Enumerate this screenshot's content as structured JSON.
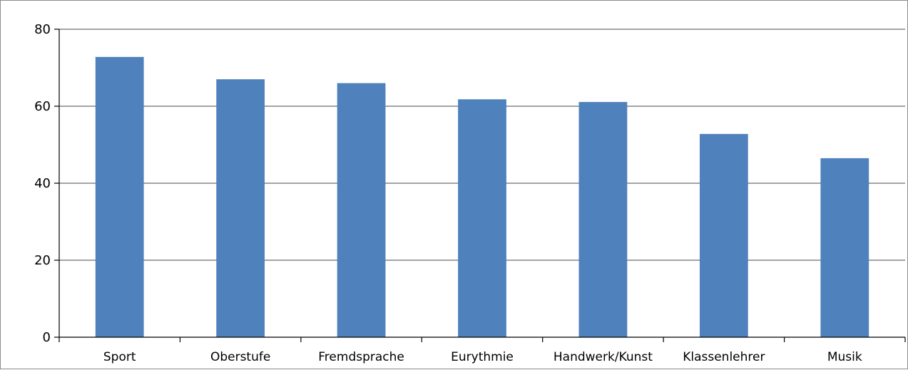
{
  "chart_data": {
    "type": "bar",
    "title": "",
    "xlabel": "",
    "ylabel": "",
    "categories": [
      "Sport",
      "Oberstufe",
      "Fremdsprache",
      "Eurythmie",
      "Handwerk/Kunst",
      "Klassenlehrer",
      "Musik"
    ],
    "values": [
      72.8,
      67.0,
      66.0,
      61.8,
      61.1,
      52.8,
      46.5
    ],
    "ylim": [
      0,
      80
    ],
    "yticks": [
      "0",
      "20",
      "40",
      "60",
      "80"
    ],
    "grid": true,
    "legend": "none",
    "colors": {
      "bar": "#4F81BD",
      "grid": "#868686",
      "axis": "#000000"
    }
  }
}
